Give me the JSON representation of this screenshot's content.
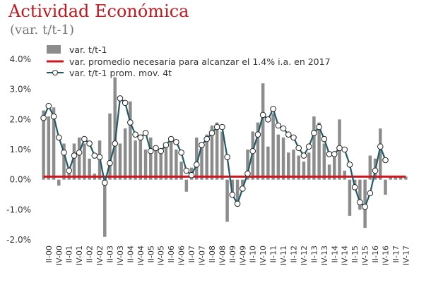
{
  "chart_data": {
    "type": "bar+line",
    "title": "Actividad Económica",
    "subtitle": "(var. t/t-1)",
    "ylim": [
      -2.0,
      4.0
    ],
    "yticks": [
      4.0,
      3.0,
      2.0,
      1.0,
      0.0,
      -1.0,
      -2.0
    ],
    "ytick_labels": [
      "4.0%",
      "3.0%",
      "2.0%",
      "1.0%",
      "0.0%",
      "-1.0%",
      "-2.0%"
    ],
    "categories": [
      "I-00",
      "II-00",
      "III-00",
      "IV-00",
      "I-01",
      "II-01",
      "III-01",
      "IV-01",
      "I-02",
      "II-02",
      "III-02",
      "IV-02",
      "I-03",
      "II-03",
      "III-03",
      "IV-03",
      "I-04",
      "II-04",
      "III-04",
      "IV-04",
      "I-05",
      "II-05",
      "III-05",
      "IV-05",
      "I-06",
      "II-06",
      "III-06",
      "IV-06",
      "I-07",
      "II-07",
      "III-07",
      "IV-07",
      "I-08",
      "II-08",
      "III-08",
      "IV-08",
      "I-09",
      "II-09",
      "III-09",
      "IV-09",
      "I-10",
      "II-10",
      "III-10",
      "IV-10",
      "I-11",
      "II-11",
      "III-11",
      "IV-11",
      "I-12",
      "II-12",
      "III-12",
      "IV-12",
      "I-13",
      "II-13",
      "III-13",
      "IV-13",
      "I-14",
      "II-14",
      "III-14",
      "IV-14",
      "I-15",
      "II-15",
      "III-15",
      "IV-15",
      "I-16",
      "II-16",
      "III-16",
      "IV-16",
      "I-17",
      "II-17",
      "III-17",
      "IV-17"
    ],
    "xtick_labels": [
      "II-00",
      "IV-00",
      "II-01",
      "IV-01",
      "II-02",
      "IV-02",
      "II-03",
      "IV-03",
      "II-04",
      "IV-04",
      "II-05",
      "IV-05",
      "II-06",
      "IV-06",
      "II-07",
      "IV-07",
      "II-08",
      "IV-08",
      "II-09",
      "IV-09",
      "II-10",
      "IV-10",
      "II-11",
      "IV-11",
      "II-12",
      "IV-12",
      "II-13",
      "IV-13",
      "II-14",
      "IV-14",
      "II-15",
      "IV-15",
      "II-16",
      "IV-16",
      "II-17",
      "IV-17"
    ],
    "series": [
      {
        "name": "var. t/t-1",
        "kind": "bar",
        "color": "#8c8c8c",
        "values": [
          2.3,
          2.1,
          2.4,
          -0.2,
          1.2,
          0.4,
          1.2,
          1.4,
          1.2,
          0.7,
          0.2,
          1.3,
          -1.9,
          2.2,
          3.4,
          1.2,
          1.7,
          2.6,
          1.3,
          1.5,
          1.0,
          1.4,
          1.1,
          0.9,
          1.2,
          1.3,
          1.0,
          0.6,
          -0.4,
          0.4,
          1.4,
          1.2,
          1.5,
          1.8,
          1.9,
          1.6,
          -1.4,
          -0.5,
          -0.8,
          -0.2,
          1.0,
          1.6,
          1.9,
          3.2,
          1.1,
          2.2,
          1.5,
          1.4,
          0.9,
          1.0,
          0.8,
          0.6,
          0.9,
          2.1,
          1.9,
          1.2,
          0.5,
          0.8,
          2.0,
          0.3,
          -1.2,
          -0.2,
          -1.0,
          -1.6,
          0.8,
          0.7,
          1.7,
          -0.5,
          0.1,
          0.1,
          0.1,
          0.1
        ]
      },
      {
        "name": "var.  promedio necesaria para alcanzar el 1.4% i.a. en 2017",
        "kind": "line",
        "color": "#d0161c",
        "values": [
          0.1,
          0.1,
          0.1,
          0.1,
          0.1,
          0.1,
          0.1,
          0.1,
          0.1,
          0.1,
          0.1,
          0.1,
          0.1,
          0.1,
          0.1,
          0.1,
          0.1,
          0.1,
          0.1,
          0.1,
          0.1,
          0.1,
          0.1,
          0.1,
          0.1,
          0.1,
          0.1,
          0.1,
          0.1,
          0.1,
          0.1,
          0.1,
          0.1,
          0.1,
          0.1,
          0.1,
          0.1,
          0.1,
          0.1,
          0.1,
          0.1,
          0.1,
          0.1,
          0.1,
          0.1,
          0.1,
          0.1,
          0.1,
          0.1,
          0.1,
          0.1,
          0.1,
          0.1,
          0.1,
          0.1,
          0.1,
          0.1,
          0.1,
          0.1,
          0.1,
          0.1,
          0.1,
          0.1,
          0.1,
          0.1,
          0.1,
          0.1,
          0.1,
          0.1,
          0.1,
          0.1,
          0.1
        ]
      },
      {
        "name": "var. t/t-1 prom.  mov. 4t",
        "kind": "line-markers",
        "color": "#1f5a66",
        "values": [
          2.05,
          2.45,
          2.1,
          1.4,
          0.9,
          0.3,
          0.8,
          0.9,
          1.35,
          1.2,
          0.8,
          0.75,
          -0.1,
          0.55,
          1.2,
          2.7,
          2.55,
          1.9,
          1.5,
          1.4,
          1.55,
          0.95,
          1.05,
          0.95,
          1.15,
          1.35,
          1.25,
          0.9,
          0.3,
          0.15,
          0.5,
          1.15,
          1.35,
          1.55,
          1.75,
          1.75,
          0.75,
          -0.5,
          -0.8,
          -0.3,
          0.2,
          0.95,
          1.5,
          2.15,
          2.0,
          2.35,
          1.8,
          1.7,
          1.5,
          1.4,
          1.05,
          0.8,
          1.1,
          1.55,
          1.75,
          1.35,
          0.85,
          0.85,
          1.05,
          1.0,
          0.5,
          -0.25,
          -0.75,
          -0.9,
          -0.45,
          0.3,
          1.1,
          0.65,
          null,
          null,
          null,
          null
        ]
      }
    ],
    "legend_position": "top"
  }
}
